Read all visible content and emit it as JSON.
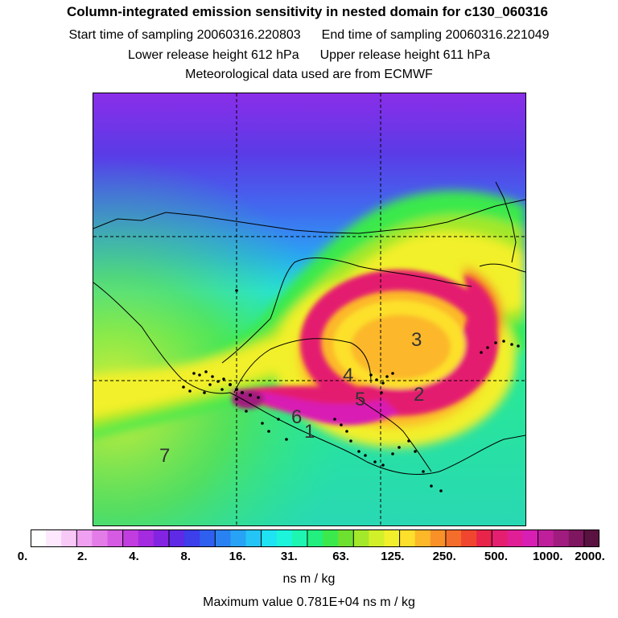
{
  "header": {
    "title": "Column-integrated emission sensitivity in nested domain for c130_060316",
    "start_label": "Start time of sampling 20060316.220803",
    "end_label": "End time of sampling 20060316.221049",
    "lower_label": "Lower release height  612 hPa",
    "upper_label": "Upper release height  611 hPa",
    "met_label": "Meteorological data used are from ECMWF"
  },
  "map": {
    "numbers": [
      "3",
      "4",
      "5",
      "2",
      "6",
      "1",
      "7"
    ]
  },
  "colorbar": {
    "colors": [
      "#ffffff",
      "#fde8fd",
      "#f8c8f7",
      "#efa0f0",
      "#e47ce8",
      "#d65be3",
      "#c23de0",
      "#a42be0",
      "#8424e3",
      "#5f2ae6",
      "#3c3fea",
      "#2f5fef",
      "#2a82f2",
      "#27a2f5",
      "#25c4f6",
      "#1fe3f3",
      "#1cf5dc",
      "#1df5b0",
      "#22ef7f",
      "#3be94c",
      "#6ee02f",
      "#a3e82a",
      "#d2f029",
      "#f2f02c",
      "#fde02b",
      "#fcb829",
      "#f99128",
      "#f56d2b",
      "#f0462f",
      "#e8244a",
      "#e41f6f",
      "#e01f96",
      "#d81fb4",
      "#c01f9c",
      "#a01c7e",
      "#7e175f",
      "#5a1240"
    ],
    "tick_labels": [
      "0.",
      "2.",
      "4.",
      "8.",
      "16.",
      "31.",
      "63.",
      "125.",
      "250.",
      "500.",
      "1000.",
      "2000."
    ]
  },
  "units": "ns m / kg",
  "max_value_label": "Maximum value  0.781E+04 ns m / kg"
}
